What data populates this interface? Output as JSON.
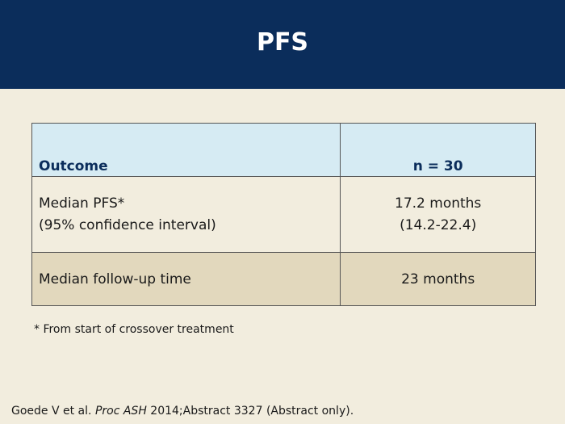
{
  "slide": {
    "title": "PFS"
  },
  "table": {
    "headers": [
      "Outcome",
      "n = 30"
    ],
    "rows": [
      {
        "label_lines": [
          "Median PFS*",
          "(95% confidence interval)"
        ],
        "value_lines": [
          "17.2 months",
          "(14.2-22.4)"
        ]
      },
      {
        "label_lines": [
          "Median follow-up time"
        ],
        "value_lines": [
          "23 months"
        ]
      }
    ]
  },
  "footnote": "* From start of crossover treatment",
  "citation": {
    "author": "Goede V et al. ",
    "journal": "Proc ASH",
    "rest": " 2014;Abstract 3327 (Abstract only)."
  },
  "colors": {
    "header_bg": "#0b2d5b",
    "page_bg": "#f2edde",
    "table_header_bg": "#d6ebf3",
    "row_alt_bg": "#e2d8bd"
  }
}
